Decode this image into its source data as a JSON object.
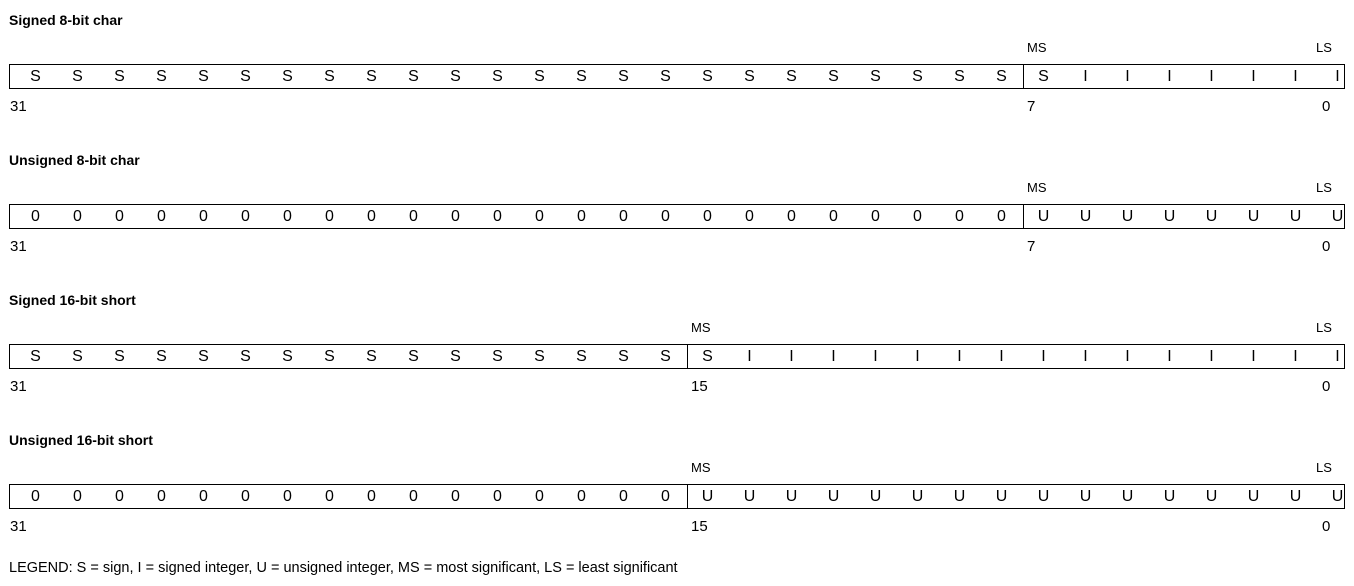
{
  "formats": [
    {
      "title": "Signed 8-bit char",
      "ms_label": "MS",
      "ls_label": "LS",
      "bits": [
        "S",
        "S",
        "S",
        "S",
        "S",
        "S",
        "S",
        "S",
        "S",
        "S",
        "S",
        "S",
        "S",
        "S",
        "S",
        "S",
        "S",
        "S",
        "S",
        "S",
        "S",
        "S",
        "S",
        "S",
        "S",
        "I",
        "I",
        "I",
        "I",
        "I",
        "I",
        "I"
      ],
      "high_bit_label": "31",
      "ms_bit_label": "7",
      "low_bit_label": "0"
    },
    {
      "title": "Unsigned 8-bit char",
      "ms_label": "MS",
      "ls_label": "LS",
      "bits": [
        "0",
        "0",
        "0",
        "0",
        "0",
        "0",
        "0",
        "0",
        "0",
        "0",
        "0",
        "0",
        "0",
        "0",
        "0",
        "0",
        "0",
        "0",
        "0",
        "0",
        "0",
        "0",
        "0",
        "0",
        "U",
        "U",
        "U",
        "U",
        "U",
        "U",
        "U",
        "U"
      ],
      "high_bit_label": "31",
      "ms_bit_label": "7",
      "low_bit_label": "0"
    },
    {
      "title": "Signed 16-bit short",
      "ms_label": "MS",
      "ls_label": "LS",
      "bits": [
        "S",
        "S",
        "S",
        "S",
        "S",
        "S",
        "S",
        "S",
        "S",
        "S",
        "S",
        "S",
        "S",
        "S",
        "S",
        "S",
        "S",
        "I",
        "I",
        "I",
        "I",
        "I",
        "I",
        "I",
        "I",
        "I",
        "I",
        "I",
        "I",
        "I",
        "I",
        "I"
      ],
      "high_bit_label": "31",
      "ms_bit_label": "15",
      "low_bit_label": "0"
    },
    {
      "title": "Unsigned 16-bit short",
      "ms_label": "MS",
      "ls_label": "LS",
      "bits": [
        "0",
        "0",
        "0",
        "0",
        "0",
        "0",
        "0",
        "0",
        "0",
        "0",
        "0",
        "0",
        "0",
        "0",
        "0",
        "0",
        "U",
        "U",
        "U",
        "U",
        "U",
        "U",
        "U",
        "U",
        "U",
        "U",
        "U",
        "U",
        "U",
        "U",
        "U",
        "U"
      ],
      "high_bit_label": "31",
      "ms_bit_label": "15",
      "low_bit_label": "0"
    }
  ],
  "legend": "LEGEND: S = sign, I = signed integer, U = unsigned integer, MS = most significant, LS = least significant"
}
